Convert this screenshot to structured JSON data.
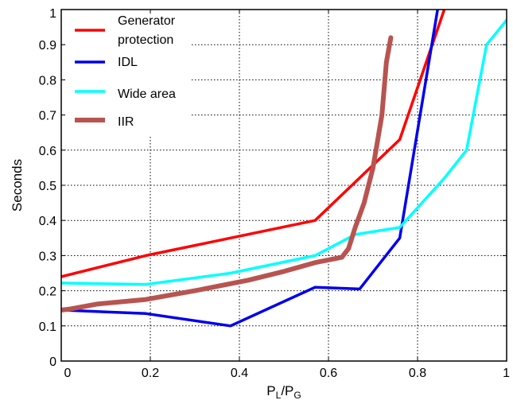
{
  "chart_data": {
    "type": "line",
    "xlabel_main": "P",
    "xlabel_sub1": "L",
    "xlabel_slash": "/P",
    "xlabel_sub2": "G",
    "ylabel": "Seconds",
    "xlim": [
      0,
      1
    ],
    "ylim": [
      0,
      1
    ],
    "x_ticks": [
      0,
      0.2,
      0.4,
      0.6,
      0.8,
      1
    ],
    "x_tick_labels": [
      "0",
      "0.2",
      "0.4",
      "0.6",
      "0.8",
      "1"
    ],
    "y_ticks": [
      0,
      0.1,
      0.2,
      0.3,
      0.4,
      0.5,
      0.6,
      0.7,
      0.8,
      0.9,
      1
    ],
    "y_tick_labels": [
      "0",
      "0.1",
      "0.2",
      "0.3",
      "0.4",
      "0.5",
      "0.6",
      "0.7",
      "0.8",
      "0.9",
      "1"
    ],
    "grid": true,
    "legend_position": "top-left",
    "series": [
      {
        "name_lines": [
          "Generator",
          "protection"
        ],
        "color": "#ff0000",
        "points": [
          [
            0,
            0.24
          ],
          [
            0.19,
            0.3
          ],
          [
            0.38,
            0.35
          ],
          [
            0.57,
            0.4
          ],
          [
            0.76,
            0.63
          ],
          [
            0.86,
            1.0
          ]
        ]
      },
      {
        "name_lines": [
          "IDL"
        ],
        "color": "#0000ee",
        "points": [
          [
            0,
            0.145
          ],
          [
            0.19,
            0.135
          ],
          [
            0.38,
            0.1
          ],
          [
            0.57,
            0.21
          ],
          [
            0.67,
            0.205
          ],
          [
            0.76,
            0.35
          ],
          [
            0.845,
            1.0
          ]
        ]
      },
      {
        "name_lines": [
          "Wide area"
        ],
        "color": "#00ffff",
        "points": [
          [
            0,
            0.222
          ],
          [
            0.19,
            0.218
          ],
          [
            0.38,
            0.25
          ],
          [
            0.57,
            0.3
          ],
          [
            0.66,
            0.36
          ],
          [
            0.76,
            0.38
          ],
          [
            0.86,
            0.52
          ],
          [
            0.91,
            0.6
          ],
          [
            0.955,
            0.9
          ],
          [
            1.0,
            0.97
          ]
        ]
      },
      {
        "name_lines": [
          "IIR"
        ],
        "color": "#b85450",
        "points": [
          [
            0,
            0.145
          ],
          [
            0.02,
            0.148
          ],
          [
            0.08,
            0.162
          ],
          [
            0.19,
            0.175
          ],
          [
            0.3,
            0.2
          ],
          [
            0.42,
            0.23
          ],
          [
            0.5,
            0.255
          ],
          [
            0.57,
            0.28
          ],
          [
            0.63,
            0.295
          ],
          [
            0.645,
            0.32
          ],
          [
            0.66,
            0.38
          ],
          [
            0.68,
            0.45
          ],
          [
            0.7,
            0.55
          ],
          [
            0.72,
            0.7
          ],
          [
            0.73,
            0.85
          ],
          [
            0.74,
            0.92
          ]
        ]
      }
    ]
  }
}
